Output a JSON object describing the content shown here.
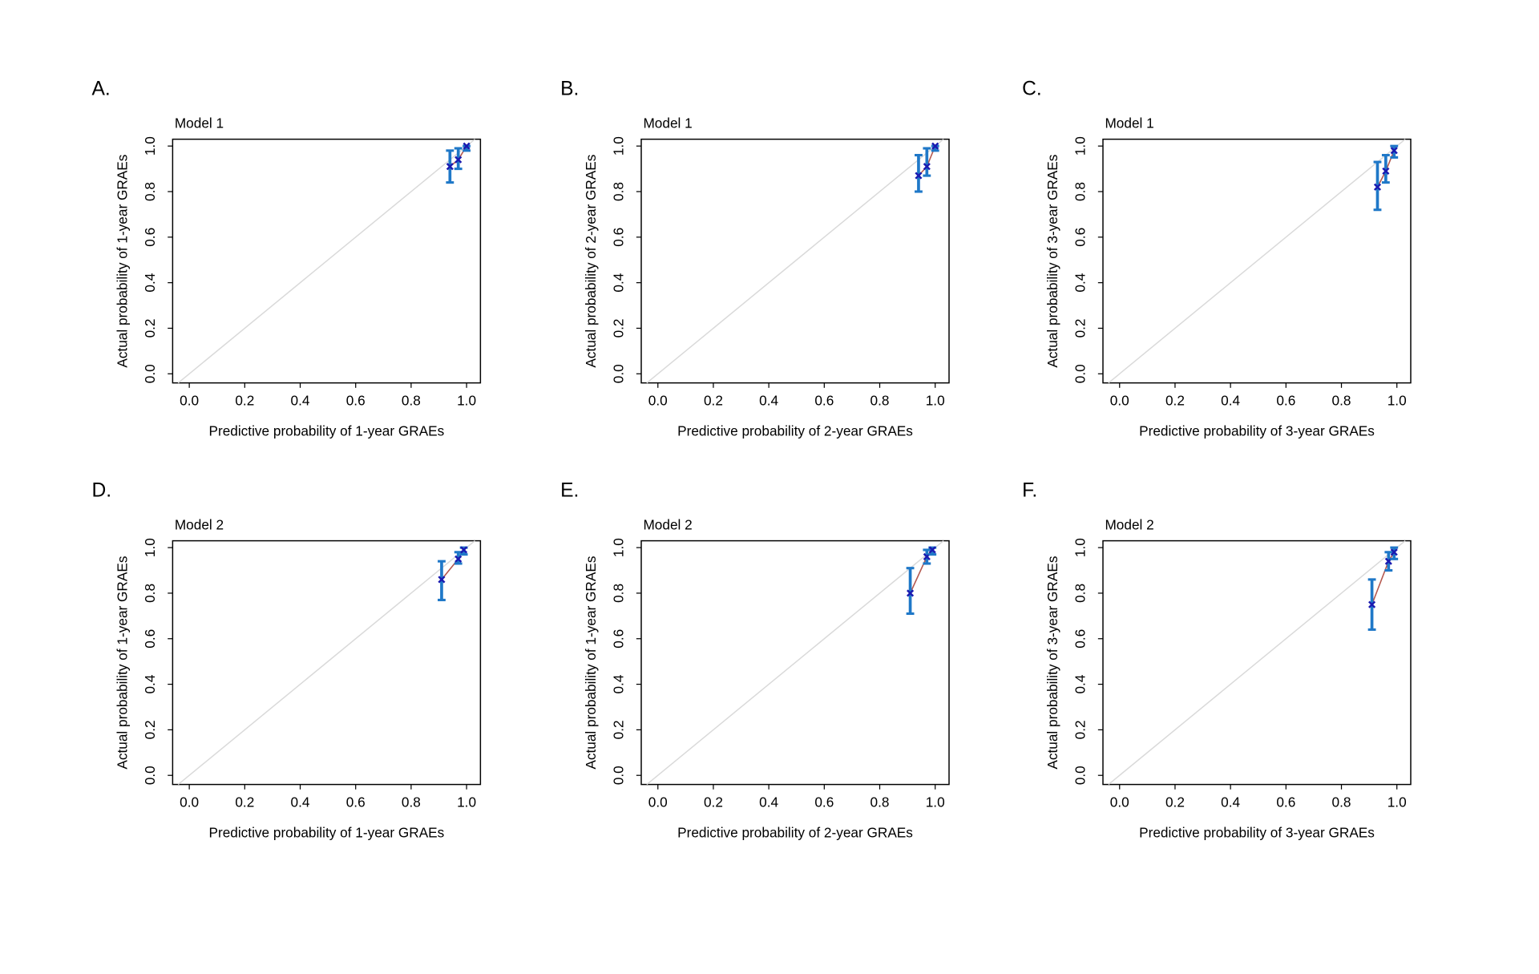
{
  "chart_data": [
    {
      "type": "scatter",
      "panel": "A.",
      "subtitle": "Model 1",
      "xlabel": "Predictive probability of 1-year GRAEs",
      "ylabel": "Actual probability of 1-year GRAEs",
      "xlim": [
        -0.06,
        1.05
      ],
      "ylim": [
        -0.04,
        1.03
      ],
      "xticks": [
        {
          "value": 0,
          "label": "0.0"
        },
        {
          "value": 0.2,
          "label": "0.2"
        },
        {
          "value": 0.4,
          "label": "0.4"
        },
        {
          "value": 0.6,
          "label": "0.6"
        },
        {
          "value": 0.8,
          "label": "0.8"
        },
        {
          "value": 1,
          "label": "1.0"
        }
      ],
      "yticks": [
        {
          "value": 0,
          "label": "0.0"
        },
        {
          "value": 0.2,
          "label": "0.2"
        },
        {
          "value": 0.4,
          "label": "0.4"
        },
        {
          "value": 0.6,
          "label": "0.6"
        },
        {
          "value": 0.8,
          "label": "0.8"
        },
        {
          "value": 1,
          "label": "1.0"
        }
      ],
      "x": [
        0.94,
        0.97,
        1.0
      ],
      "values": [
        0.91,
        0.94,
        1.0
      ],
      "lower": [
        0.84,
        0.9,
        0.98
      ],
      "upper": [
        0.98,
        0.99,
        1.0
      ],
      "color": "#1a1ab0",
      "line_color": "#b5594f",
      "errbar_color": "#1f78c8",
      "diagonal_color": "#d9d9d9"
    },
    {
      "type": "scatter",
      "panel": "B.",
      "subtitle": "Model 1",
      "xlabel": "Predictive probability of 2-year GRAEs",
      "ylabel": "Actual probability of 2-year GRAEs",
      "xlim": [
        -0.06,
        1.05
      ],
      "ylim": [
        -0.04,
        1.03
      ],
      "xticks": [
        {
          "value": 0,
          "label": "0.0"
        },
        {
          "value": 0.2,
          "label": "0.2"
        },
        {
          "value": 0.4,
          "label": "0.4"
        },
        {
          "value": 0.6,
          "label": "0.6"
        },
        {
          "value": 0.8,
          "label": "0.8"
        },
        {
          "value": 1,
          "label": "1.0"
        }
      ],
      "yticks": [
        {
          "value": 0,
          "label": "0.0"
        },
        {
          "value": 0.2,
          "label": "0.2"
        },
        {
          "value": 0.4,
          "label": "0.4"
        },
        {
          "value": 0.6,
          "label": "0.6"
        },
        {
          "value": 0.8,
          "label": "0.8"
        },
        {
          "value": 1,
          "label": "1.0"
        }
      ],
      "x": [
        0.94,
        0.97,
        1.0
      ],
      "values": [
        0.87,
        0.91,
        1.0
      ],
      "lower": [
        0.8,
        0.87,
        0.98
      ],
      "upper": [
        0.96,
        0.99,
        1.0
      ],
      "color": "#1a1ab0",
      "line_color": "#b5594f",
      "errbar_color": "#1f78c8",
      "diagonal_color": "#d9d9d9"
    },
    {
      "type": "scatter",
      "panel": "C.",
      "subtitle": "Model 1",
      "xlabel": "Predictive probability of 3-year GRAEs",
      "ylabel": "Actual probability of 3-year GRAEs",
      "xlim": [
        -0.06,
        1.05
      ],
      "ylim": [
        -0.04,
        1.03
      ],
      "xticks": [
        {
          "value": 0,
          "label": "0.0"
        },
        {
          "value": 0.2,
          "label": "0.2"
        },
        {
          "value": 0.4,
          "label": "0.4"
        },
        {
          "value": 0.6,
          "label": "0.6"
        },
        {
          "value": 0.8,
          "label": "0.8"
        },
        {
          "value": 1,
          "label": "1.0"
        }
      ],
      "yticks": [
        {
          "value": 0,
          "label": "0.0"
        },
        {
          "value": 0.2,
          "label": "0.2"
        },
        {
          "value": 0.4,
          "label": "0.4"
        },
        {
          "value": 0.6,
          "label": "0.6"
        },
        {
          "value": 0.8,
          "label": "0.8"
        },
        {
          "value": 1,
          "label": "1.0"
        }
      ],
      "x": [
        0.93,
        0.96,
        0.99
      ],
      "values": [
        0.82,
        0.89,
        0.98
      ],
      "lower": [
        0.72,
        0.84,
        0.95
      ],
      "upper": [
        0.93,
        0.96,
        1.0
      ],
      "color": "#1a1ab0",
      "line_color": "#b5594f",
      "errbar_color": "#1f78c8",
      "diagonal_color": "#d9d9d9"
    },
    {
      "type": "scatter",
      "panel": "D.",
      "subtitle": "Model 2",
      "xlabel": "Predictive probability of 1-year GRAEs",
      "ylabel": "Actual probability of 1-year GRAEs",
      "xlim": [
        -0.06,
        1.05
      ],
      "ylim": [
        -0.04,
        1.03
      ],
      "xticks": [
        {
          "value": 0,
          "label": "0.0"
        },
        {
          "value": 0.2,
          "label": "0.2"
        },
        {
          "value": 0.4,
          "label": "0.4"
        },
        {
          "value": 0.6,
          "label": "0.6"
        },
        {
          "value": 0.8,
          "label": "0.8"
        },
        {
          "value": 1,
          "label": "1.0"
        }
      ],
      "yticks": [
        {
          "value": 0,
          "label": "0.0"
        },
        {
          "value": 0.2,
          "label": "0.2"
        },
        {
          "value": 0.4,
          "label": "0.4"
        },
        {
          "value": 0.6,
          "label": "0.6"
        },
        {
          "value": 0.8,
          "label": "0.8"
        },
        {
          "value": 1,
          "label": "1.0"
        }
      ],
      "x": [
        0.91,
        0.97,
        0.99
      ],
      "values": [
        0.86,
        0.95,
        0.99
      ],
      "lower": [
        0.77,
        0.93,
        0.97
      ],
      "upper": [
        0.94,
        0.98,
        1.0
      ],
      "color": "#1a1ab0",
      "line_color": "#b5594f",
      "errbar_color": "#1f78c8",
      "diagonal_color": "#d9d9d9"
    },
    {
      "type": "scatter",
      "panel": "E.",
      "subtitle": "Model 2",
      "xlabel": "Predictive probability of 2-year GRAEs",
      "ylabel": "Actual probability of 1-year GRAEs",
      "xlim": [
        -0.06,
        1.05
      ],
      "ylim": [
        -0.04,
        1.03
      ],
      "xticks": [
        {
          "value": 0,
          "label": "0.0"
        },
        {
          "value": 0.2,
          "label": "0.2"
        },
        {
          "value": 0.4,
          "label": "0.4"
        },
        {
          "value": 0.6,
          "label": "0.6"
        },
        {
          "value": 0.8,
          "label": "0.8"
        },
        {
          "value": 1,
          "label": "1.0"
        }
      ],
      "yticks": [
        {
          "value": 0,
          "label": "0.0"
        },
        {
          "value": 0.2,
          "label": "0.2"
        },
        {
          "value": 0.4,
          "label": "0.4"
        },
        {
          "value": 0.6,
          "label": "0.6"
        },
        {
          "value": 0.8,
          "label": "0.8"
        },
        {
          "value": 1,
          "label": "1.0"
        }
      ],
      "x": [
        0.91,
        0.97,
        0.99
      ],
      "values": [
        0.8,
        0.96,
        0.99
      ],
      "lower": [
        0.71,
        0.93,
        0.97
      ],
      "upper": [
        0.91,
        0.99,
        1.0
      ],
      "color": "#1a1ab0",
      "line_color": "#b5594f",
      "errbar_color": "#1f78c8",
      "diagonal_color": "#d9d9d9"
    },
    {
      "type": "scatter",
      "panel": "F.",
      "subtitle": "Model 2",
      "xlabel": "Predictive probability of 3-year GRAEs",
      "ylabel": "Actual probability of 3-year GRAEs",
      "xlim": [
        -0.06,
        1.05
      ],
      "ylim": [
        -0.04,
        1.03
      ],
      "xticks": [
        {
          "value": 0,
          "label": "0.0"
        },
        {
          "value": 0.2,
          "label": "0.2"
        },
        {
          "value": 0.4,
          "label": "0.4"
        },
        {
          "value": 0.6,
          "label": "0.6"
        },
        {
          "value": 0.8,
          "label": "0.8"
        },
        {
          "value": 1,
          "label": "1.0"
        }
      ],
      "yticks": [
        {
          "value": 0,
          "label": "0.0"
        },
        {
          "value": 0.2,
          "label": "0.2"
        },
        {
          "value": 0.4,
          "label": "0.4"
        },
        {
          "value": 0.6,
          "label": "0.6"
        },
        {
          "value": 0.8,
          "label": "0.8"
        },
        {
          "value": 1,
          "label": "1.0"
        }
      ],
      "x": [
        0.91,
        0.97,
        0.99
      ],
      "values": [
        0.75,
        0.94,
        0.98
      ],
      "lower": [
        0.64,
        0.9,
        0.95
      ],
      "upper": [
        0.86,
        0.98,
        1.0
      ],
      "color": "#1a1ab0",
      "line_color": "#b5594f",
      "errbar_color": "#1f78c8",
      "diagonal_color": "#d9d9d9"
    }
  ]
}
